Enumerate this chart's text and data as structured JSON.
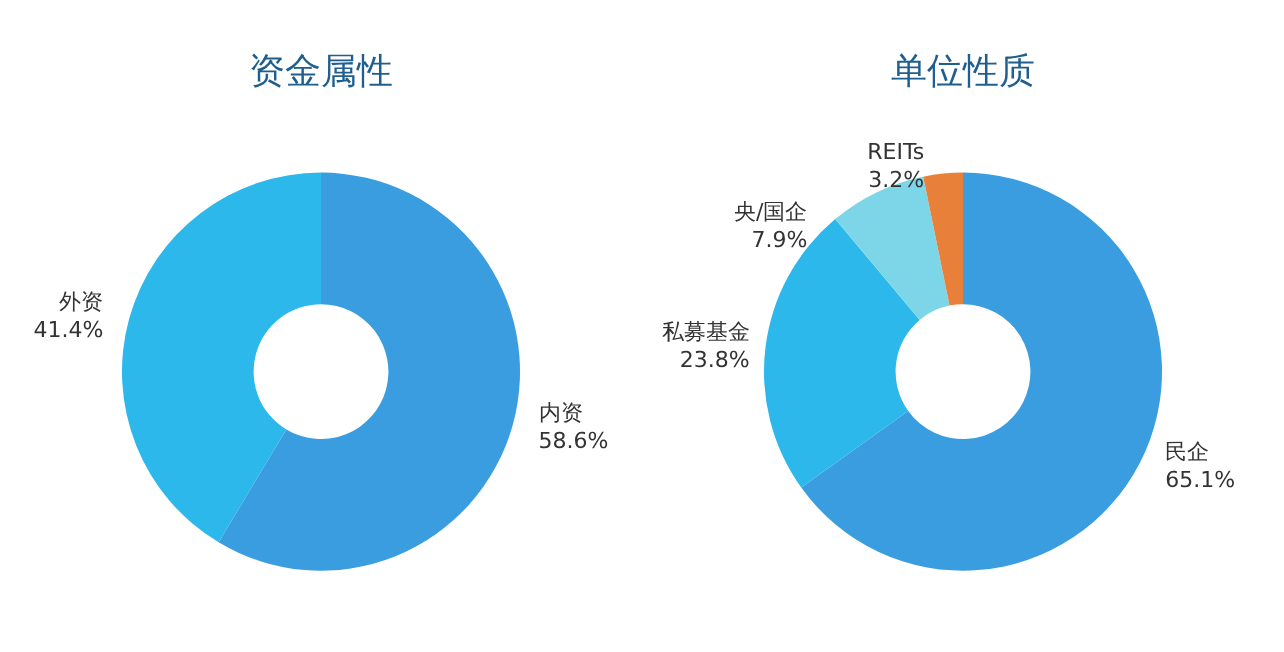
{
  "chart_data": [
    {
      "type": "donut",
      "title": "资金属性",
      "categories": [
        "内资",
        "外资"
      ],
      "values": [
        58.6,
        41.4
      ],
      "value_labels": [
        "58.6%",
        "41.4%"
      ],
      "colors": [
        "#3a9de0",
        "#2cb8ea"
      ]
    },
    {
      "type": "donut",
      "title": "单位性质",
      "categories": [
        "民企",
        "私募基金",
        "央/国企",
        "REITs"
      ],
      "values": [
        65.1,
        23.8,
        7.9,
        3.2
      ],
      "value_labels": [
        "65.1%",
        "23.8%",
        "7.9%",
        "3.2%"
      ],
      "colors": [
        "#3a9de0",
        "#2cb8ea",
        "#7dd6e8",
        "#e8803a"
      ]
    }
  ]
}
